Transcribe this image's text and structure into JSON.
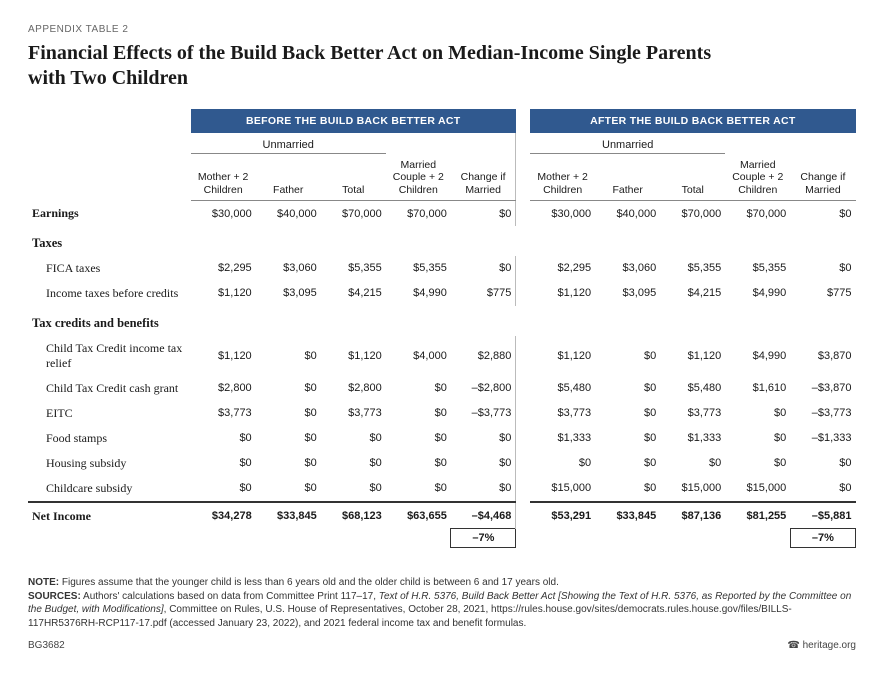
{
  "appendix_label": "APPENDIX TABLE 2",
  "title": "Financial Effects of the Build Back Better Act on Median-Income Single Parents with Two Children",
  "bands": {
    "before": "BEFORE THE BUILD BACK BETTER ACT",
    "after": "AFTER THE BUILD BACK BETTER ACT"
  },
  "sub_headers": {
    "unmarried": "Unmarried",
    "mother": "Mother + 2 Children",
    "father": "Father",
    "total": "Total",
    "married": "Married Couple + 2 Children",
    "change": "Change if Married"
  },
  "sections": {
    "earnings": "Earnings",
    "taxes": "Taxes",
    "fica": "FICA taxes",
    "income_tax": "Income taxes before credits",
    "credits": "Tax credits and benefits",
    "ctc_relief": "Child Tax Credit income tax relief",
    "ctc_cash": "Child Tax Credit cash grant",
    "eitc": "EITC",
    "food": "Food stamps",
    "housing": "Housing subsidy",
    "childcare": "Childcare subsidy",
    "net": "Net Income"
  },
  "rows": {
    "earnings": {
      "b": [
        "$30,000",
        "$40,000",
        "$70,000",
        "$70,000",
        "$0"
      ],
      "a": [
        "$30,000",
        "$40,000",
        "$70,000",
        "$70,000",
        "$0"
      ]
    },
    "fica": {
      "b": [
        "$2,295",
        "$3,060",
        "$5,355",
        "$5,355",
        "$0"
      ],
      "a": [
        "$2,295",
        "$3,060",
        "$5,355",
        "$5,355",
        "$0"
      ]
    },
    "income_tax": {
      "b": [
        "$1,120",
        "$3,095",
        "$4,215",
        "$4,990",
        "$775"
      ],
      "a": [
        "$1,120",
        "$3,095",
        "$4,215",
        "$4,990",
        "$775"
      ]
    },
    "ctc_relief": {
      "b": [
        "$1,120",
        "$0",
        "$1,120",
        "$4,000",
        "$2,880"
      ],
      "a": [
        "$1,120",
        "$0",
        "$1,120",
        "$4,990",
        "$3,870"
      ]
    },
    "ctc_cash": {
      "b": [
        "$2,800",
        "$0",
        "$2,800",
        "$0",
        "–$2,800"
      ],
      "a": [
        "$5,480",
        "$0",
        "$5,480",
        "$1,610",
        "–$3,870"
      ]
    },
    "eitc": {
      "b": [
        "$3,773",
        "$0",
        "$3,773",
        "$0",
        "–$3,773"
      ],
      "a": [
        "$3,773",
        "$0",
        "$3,773",
        "$0",
        "–$3,773"
      ]
    },
    "food": {
      "b": [
        "$0",
        "$0",
        "$0",
        "$0",
        "$0"
      ],
      "a": [
        "$1,333",
        "$0",
        "$1,333",
        "$0",
        "–$1,333"
      ]
    },
    "housing": {
      "b": [
        "$0",
        "$0",
        "$0",
        "$0",
        "$0"
      ],
      "a": [
        "$0",
        "$0",
        "$0",
        "$0",
        "$0"
      ]
    },
    "childcare": {
      "b": [
        "$0",
        "$0",
        "$0",
        "$0",
        "$0"
      ],
      "a": [
        "$15,000",
        "$0",
        "$15,000",
        "$15,000",
        "$0"
      ]
    },
    "net": {
      "b": [
        "$34,278",
        "$33,845",
        "$68,123",
        "$63,655",
        "–$4,468"
      ],
      "a": [
        "$53,291",
        "$33,845",
        "$87,136",
        "$81,255",
        "–$5,881"
      ]
    }
  },
  "pct": {
    "before": "–7%",
    "after": "–7%"
  },
  "note_label": "NOTE:",
  "note_text": " Figures assume that the younger child is less than 6 years old and the older child is between 6 and 17 years old.",
  "sources_label": "SOURCES:",
  "sources_text_1": " Authors' calculations based on data from Committee Print 117–17, ",
  "sources_ital": "Text of H.R. 5376, Build Back Better Act [Showing the Text of H.R. 5376, as Reported by the Committee on the Budget, with Modifications]",
  "sources_text_2": ", Committee on Rules, U.S. House of Representatives, October 28, 2021, https://rules.house.gov/sites/democrats.rules.house.gov/files/BILLS-117HR5376RH-RCP117-17.pdf (accessed January 23, 2022), and 2021 federal income tax and benefit formulas.",
  "doc_id": "BG3682",
  "site": "heritage.org",
  "colors": {
    "band_bg": "#30598f",
    "rule": "#333333"
  }
}
